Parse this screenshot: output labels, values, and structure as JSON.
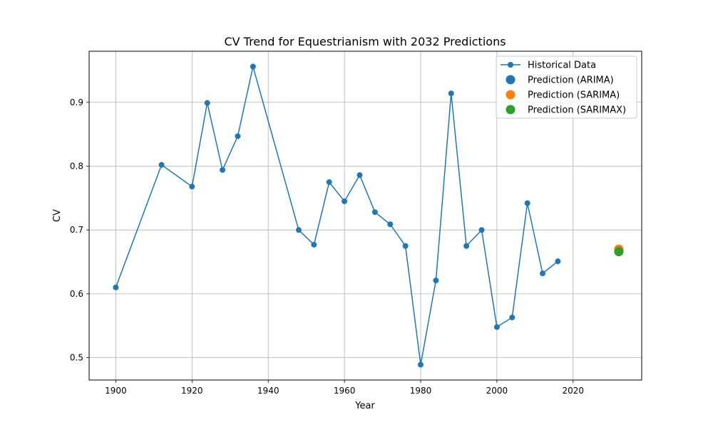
{
  "chart_data": {
    "type": "line",
    "title": "CV Trend for Equestrianism with 2032 Predictions",
    "xlabel": "Year",
    "ylabel": "CV",
    "xlim": [
      1893,
      2038
    ],
    "ylim": [
      0.465,
      0.98
    ],
    "xticks": [
      1900,
      1920,
      1940,
      1960,
      1980,
      2000,
      2020
    ],
    "yticks": [
      0.5,
      0.6,
      0.7,
      0.8,
      0.9
    ],
    "ytick_labels": [
      "0.5",
      "0.6",
      "0.7",
      "0.8",
      "0.9"
    ],
    "grid": true,
    "legend_position": "top-right",
    "series": [
      {
        "name": "Historical Data",
        "color": "#1f77b4",
        "x": [
          1900,
          1912,
          1920,
          1924,
          1928,
          1932,
          1936,
          1948,
          1952,
          1956,
          1960,
          1964,
          1968,
          1972,
          1976,
          1980,
          1984,
          1988,
          1992,
          1996,
          2000,
          2004,
          2008,
          2012,
          2016
        ],
        "y": [
          0.61,
          0.802,
          0.768,
          0.899,
          0.794,
          0.847,
          0.956,
          0.7,
          0.677,
          0.775,
          0.745,
          0.786,
          0.728,
          0.709,
          0.675,
          0.489,
          0.621,
          0.914,
          0.675,
          0.7,
          0.548,
          0.563,
          0.742,
          0.632,
          0.651
        ]
      }
    ],
    "predictions": [
      {
        "name": "Prediction (ARIMA)",
        "color": "#1f77b4",
        "x": 2032,
        "y": 0.669
      },
      {
        "name": "Prediction (SARIMA)",
        "color": "#ff7f0e",
        "x": 2032,
        "y": 0.67
      },
      {
        "name": "Prediction (SARIMAX)",
        "color": "#2ca02c",
        "x": 2032,
        "y": 0.666
      }
    ]
  }
}
